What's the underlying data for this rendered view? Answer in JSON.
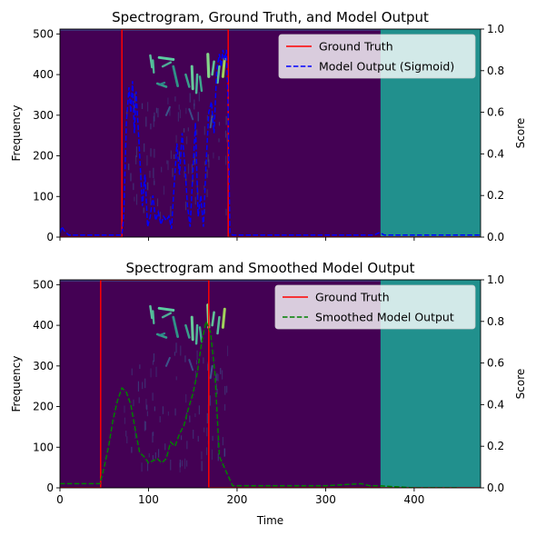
{
  "chart_data": [
    {
      "type": "line",
      "title": "Spectrogram, Ground Truth, and Model Output",
      "xlabel": "",
      "ylabel": "Frequency",
      "ylabel_right": "Score",
      "xlim": [
        0,
        475
      ],
      "ylim": [
        0,
        512
      ],
      "ylim_right": [
        0,
        1
      ],
      "xticks": [
        0,
        100,
        200,
        300,
        400
      ],
      "xtick_labels_visible": false,
      "yticks": [
        0,
        100,
        200,
        300,
        400,
        500
      ],
      "yticks_right": [
        "0.0",
        "0.2",
        "0.4",
        "0.6",
        "0.8",
        "1.0"
      ],
      "legend_position": "top-right",
      "spectrogram": {
        "colormap": "viridis",
        "background_color": "#440154",
        "padding_start_x": 362,
        "padding_color": "#21908d",
        "note": "bird song calls concentrated between x=70 and x=190"
      },
      "series": [
        {
          "name": "Ground Truth",
          "color": "#ff0000",
          "style": "solid",
          "x": [
            0,
            70,
            70,
            190,
            190,
            475
          ],
          "y": [
            0,
            0,
            1,
            1,
            0,
            0
          ]
        },
        {
          "name": "Model Output (Sigmoid)",
          "color": "#0000ff",
          "style": "dashed",
          "x": [
            0,
            2,
            5,
            10,
            70,
            72,
            75,
            78,
            80,
            82,
            84,
            86,
            88,
            90,
            93,
            96,
            99,
            102,
            105,
            108,
            111,
            114,
            117,
            120,
            123,
            126,
            129,
            132,
            135,
            138,
            141,
            144,
            147,
            150,
            153,
            156,
            159,
            162,
            165,
            168,
            171,
            174,
            177,
            180,
            182,
            184,
            186,
            188,
            190,
            192,
            195,
            200,
            300,
            355,
            360,
            362,
            366,
            372,
            400,
            475
          ],
          "y": [
            0.02,
            0.05,
            0.03,
            0.01,
            0.01,
            0.1,
            0.55,
            0.72,
            0.6,
            0.75,
            0.5,
            0.7,
            0.55,
            0.4,
            0.15,
            0.3,
            0.05,
            0.1,
            0.2,
            0.08,
            0.12,
            0.06,
            0.1,
            0.08,
            0.1,
            0.04,
            0.25,
            0.45,
            0.3,
            0.5,
            0.35,
            0.15,
            0.05,
            0.3,
            0.55,
            0.1,
            0.2,
            0.05,
            0.35,
            0.6,
            0.65,
            0.5,
            0.8,
            0.88,
            0.82,
            0.9,
            0.85,
            0.9,
            0.6,
            0.02,
            0.01,
            0.01,
            0.01,
            0.01,
            0.02,
            0.02,
            0.01,
            0.01,
            0.01,
            0.01
          ]
        }
      ]
    },
    {
      "type": "line",
      "title": "Spectrogram and Smoothed Model Output",
      "xlabel": "Time",
      "ylabel": "Frequency",
      "ylabel_right": "Score",
      "xlim": [
        0,
        475
      ],
      "ylim": [
        0,
        512
      ],
      "ylim_right": [
        0,
        1
      ],
      "xticks": [
        0,
        100,
        200,
        300,
        400
      ],
      "xtick_labels_visible": true,
      "yticks": [
        0,
        100,
        200,
        300,
        400,
        500
      ],
      "yticks_right": [
        "0.0",
        "0.2",
        "0.4",
        "0.6",
        "0.8",
        "1.0"
      ],
      "legend_position": "top-right",
      "spectrogram": {
        "colormap": "viridis",
        "background_color": "#440154",
        "padding_start_x": 362,
        "padding_color": "#21908d",
        "note": "bird song calls concentrated between x=70 and x=190"
      },
      "series": [
        {
          "name": "Ground Truth",
          "color": "#ff0000",
          "style": "solid",
          "x": [
            0,
            46,
            46,
            168,
            168,
            475
          ],
          "y": [
            0,
            0,
            1,
            1,
            0,
            0
          ]
        },
        {
          "name": "Smoothed Model Output",
          "color": "#008000",
          "style": "dashed",
          "x": [
            0,
            15,
            45,
            50,
            55,
            60,
            65,
            70,
            75,
            80,
            85,
            90,
            95,
            100,
            105,
            110,
            115,
            120,
            125,
            130,
            135,
            140,
            145,
            150,
            155,
            160,
            165,
            170,
            175,
            180,
            195,
            250,
            300,
            340,
            350,
            360,
            400,
            450
          ],
          "y": [
            0.02,
            0.02,
            0.02,
            0.1,
            0.2,
            0.33,
            0.42,
            0.48,
            0.46,
            0.4,
            0.28,
            0.17,
            0.15,
            0.12,
            0.13,
            0.14,
            0.12,
            0.14,
            0.22,
            0.2,
            0.26,
            0.3,
            0.38,
            0.45,
            0.55,
            0.7,
            0.8,
            0.75,
            0.55,
            0.15,
            0.01,
            0.01,
            0.01,
            0.02,
            0.01,
            0.01,
            0.0,
            0.0
          ]
        }
      ]
    }
  ]
}
